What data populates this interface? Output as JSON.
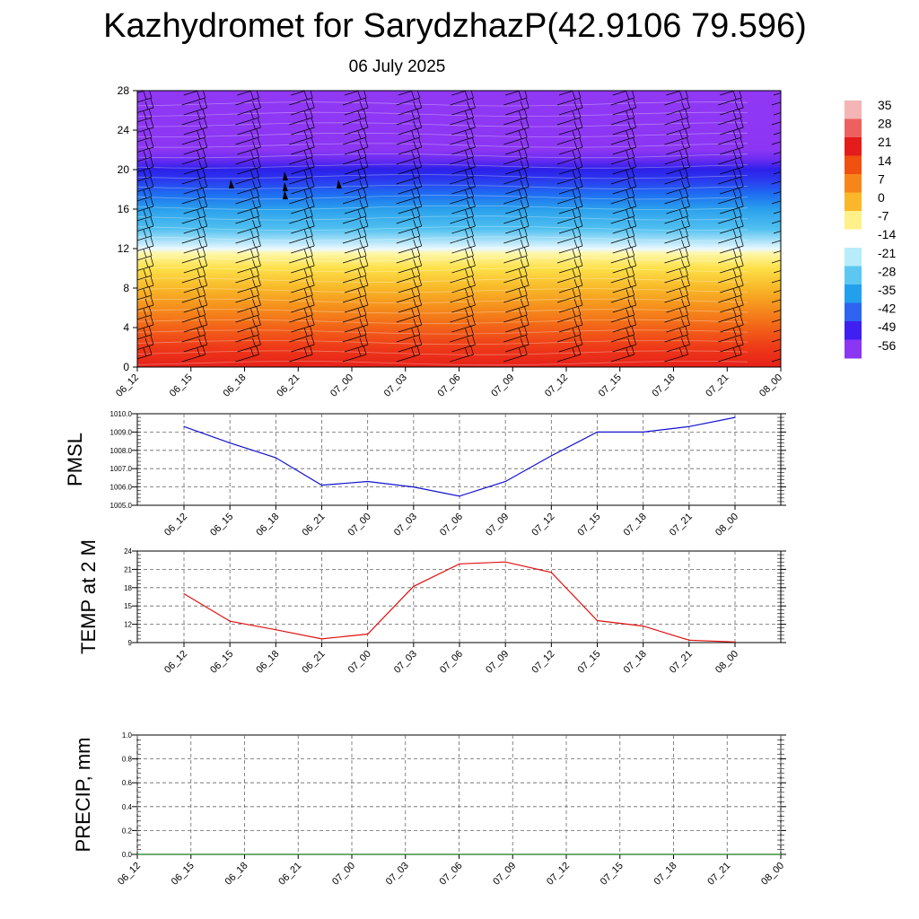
{
  "title": "Kazhydromet for SarydzhazP(42.9106 79.596)",
  "subtitle": "06 July 2025",
  "colors": {
    "pmsl_line": "#1010d0",
    "temp_line": "#e01010",
    "precip_line": "#1a7a1a",
    "grid": "#666666"
  },
  "chart_data": [
    {
      "type": "heatmap",
      "name_visible": false,
      "y_ticks": [
        "0",
        "4",
        "8",
        "12",
        "16",
        "20",
        "24",
        "28"
      ],
      "ylim": [
        0,
        28
      ],
      "x_ticks": [
        "06_12",
        "06_15",
        "06_18",
        "06_21",
        "07_00",
        "07_03",
        "07_06",
        "07_09",
        "07_12",
        "07_15",
        "07_18",
        "07_21",
        "08_00"
      ],
      "colorbar_labels": [
        "35",
        "28",
        "21",
        "14",
        "7",
        "0",
        "-7",
        "-14",
        "-21",
        "-28",
        "-35",
        "-42",
        "-49",
        "-56"
      ],
      "colorbar_colors": [
        "#f3b5b5",
        "#ee6060",
        "#e41c1c",
        "#f05010",
        "#f7861a",
        "#fbb72a",
        "#fff08a",
        "#ffffff",
        "#b7ecfa",
        "#5cc8f2",
        "#22a0ee",
        "#2e64f0",
        "#4020f0",
        "#8a36f3"
      ],
      "levels_km": [
        0,
        2,
        4,
        6,
        8,
        10,
        11.5,
        12,
        13,
        14,
        16,
        17.5,
        19,
        20,
        21,
        22,
        28
      ],
      "level_colors": [
        "#e6201a",
        "#ee3a18",
        "#f26318",
        "#f58e1c",
        "#f8b828",
        "#fde048",
        "#fff7a8",
        "#e8f8ff",
        "#9adcf7",
        "#50c0f0",
        "#2aa0ec",
        "#1e6ef2",
        "#2c38f0",
        "#2c20e8",
        "#6a2cf2",
        "#8c36f3",
        "#9038f4"
      ],
      "barbs": true
    },
    {
      "type": "line",
      "ylabel": "PMSL",
      "x": [
        "06_12",
        "06_15",
        "06_18",
        "06_21",
        "07_00",
        "07_03",
        "07_06",
        "07_09",
        "07_12",
        "07_15",
        "07_18",
        "07_21",
        "08_00"
      ],
      "series": [
        {
          "values": [
            1009.3,
            1008.4,
            1007.6,
            1006.1,
            1006.3,
            1006.0,
            1005.5,
            1006.3,
            1007.7,
            1009.0,
            1009.0,
            1009.3,
            1009.8
          ]
        }
      ],
      "y_ticks": [
        "1005.0",
        "1006.0",
        "1007.0",
        "1008.0",
        "1009.0",
        "1010.0"
      ],
      "ylim": [
        1005.0,
        1010.0
      ],
      "grid": true
    },
    {
      "type": "line",
      "ylabel": "TEMP at 2 M",
      "x": [
        "06_12",
        "06_15",
        "06_18",
        "06_21",
        "07_00",
        "07_03",
        "07_06",
        "07_09",
        "07_12",
        "07_15",
        "07_18",
        "07_21",
        "08_00"
      ],
      "series": [
        {
          "values": [
            17.0,
            12.5,
            11.1,
            9.6,
            10.4,
            18.2,
            21.9,
            22.2,
            20.5,
            12.6,
            11.7,
            9.4,
            9.1
          ]
        }
      ],
      "y_ticks": [
        "9",
        "12",
        "15",
        "18",
        "21",
        "24"
      ],
      "ylim": [
        9,
        24
      ],
      "grid": true
    },
    {
      "type": "line",
      "ylabel": "PRECIP, mm",
      "x": [
        "06_12",
        "06_15",
        "06_18",
        "06_21",
        "07_00",
        "07_03",
        "07_06",
        "07_09",
        "07_12",
        "07_15",
        "07_18",
        "07_21",
        "08_00"
      ],
      "series": [
        {
          "values": [
            0,
            0,
            0,
            0,
            0,
            0,
            0,
            0,
            0,
            0,
            0,
            0,
            0
          ]
        }
      ],
      "y_ticks": [
        "0.0",
        "0.2",
        "0.4",
        "0.6",
        "0.8",
        "1.0"
      ],
      "ylim": [
        0.0,
        1.0
      ],
      "grid": true
    }
  ]
}
